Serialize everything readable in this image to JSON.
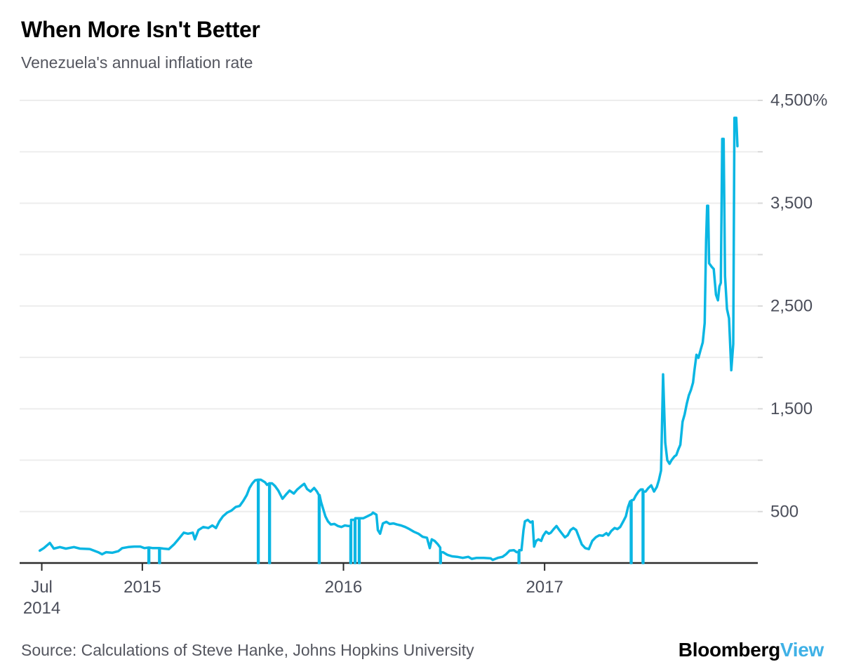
{
  "header": {
    "title": "When More Isn't Better",
    "subtitle": "Venezuela's annual inflation rate"
  },
  "footer": {
    "source": "Source: Calculations of Steve Hanke, Johns Hopkins University",
    "brand_bloomberg": "Bloomberg",
    "brand_view": "View"
  },
  "chart_data": {
    "type": "line",
    "title": "When More Isn't Better",
    "subtitle": "Venezuela's annual inflation rate",
    "series_name": "Venezuela annual inflation rate (%)",
    "line_color": "#0ab6e3",
    "grid_color": "#ededed",
    "tick_color": "#d9d9d9",
    "axis_color": "#2d2d2d",
    "label_color": "#4b4e5a",
    "view_blue": "#3fb1e6",
    "ylim": [
      0,
      4500
    ],
    "grid_step": 500,
    "x_range_years": [
      2014.39,
      2018.06
    ],
    "legend": "none",
    "y_ticks": [
      {
        "value": 4500,
        "label": "4,500%"
      },
      {
        "value": 3500,
        "label": "3,500"
      },
      {
        "value": 2500,
        "label": "2,500"
      },
      {
        "value": 1500,
        "label": "1,500"
      },
      {
        "value": 500,
        "label": "500"
      }
    ],
    "x_ticks": [
      {
        "year": 2014.5,
        "label": "Jul",
        "sublabel": "2014"
      },
      {
        "year": 2015,
        "label": "2015"
      },
      {
        "year": 2016,
        "label": "2016"
      },
      {
        "year": 2017,
        "label": "2017"
      }
    ],
    "points": [
      [
        2014.49,
        120
      ],
      [
        2014.51,
        145
      ],
      [
        2014.54,
        195
      ],
      [
        2014.56,
        140
      ],
      [
        2014.59,
        155
      ],
      [
        2014.62,
        140
      ],
      [
        2014.66,
        155
      ],
      [
        2014.69,
        140
      ],
      [
        2014.74,
        135
      ],
      [
        2014.78,
        105
      ],
      [
        2014.8,
        85
      ],
      [
        2014.82,
        105
      ],
      [
        2014.85,
        100
      ],
      [
        2014.88,
        115
      ],
      [
        2014.9,
        145
      ],
      [
        2014.93,
        155
      ],
      [
        2014.96,
        160
      ],
      [
        2014.99,
        160
      ],
      [
        2015.01,
        145
      ],
      [
        2015.031,
        150
      ],
      [
        2015.031,
        0
      ],
      [
        2015.034,
        0
      ],
      [
        2015.034,
        150
      ],
      [
        2015.052,
        145
      ],
      [
        2015.084,
        145
      ],
      [
        2015.084,
        0
      ],
      [
        2015.087,
        0
      ],
      [
        2015.087,
        145
      ],
      [
        2015.105,
        140
      ],
      [
        2015.132,
        135
      ],
      [
        2015.157,
        180
      ],
      [
        2015.181,
        235
      ],
      [
        2015.206,
        295
      ],
      [
        2015.227,
        285
      ],
      [
        2015.251,
        295
      ],
      [
        2015.261,
        230
      ],
      [
        2015.279,
        320
      ],
      [
        2015.303,
        350
      ],
      [
        2015.328,
        340
      ],
      [
        2015.348,
        365
      ],
      [
        2015.366,
        340
      ],
      [
        2015.383,
        405
      ],
      [
        2015.401,
        455
      ],
      [
        2015.422,
        490
      ],
      [
        2015.443,
        510
      ],
      [
        2015.464,
        545
      ],
      [
        2015.484,
        555
      ],
      [
        2015.502,
        605
      ],
      [
        2015.519,
        660
      ],
      [
        2015.533,
        730
      ],
      [
        2015.547,
        775
      ],
      [
        2015.561,
        805
      ],
      [
        2015.575,
        810
      ],
      [
        2015.575,
        0
      ],
      [
        2015.578,
        0
      ],
      [
        2015.578,
        810
      ],
      [
        2015.589,
        810
      ],
      [
        2015.61,
        785
      ],
      [
        2015.62,
        760
      ],
      [
        2015.631,
        775
      ],
      [
        2015.631,
        0
      ],
      [
        2015.634,
        0
      ],
      [
        2015.634,
        775
      ],
      [
        2015.645,
        775
      ],
      [
        2015.659,
        750
      ],
      [
        2015.676,
        705
      ],
      [
        2015.697,
        625
      ],
      [
        2015.714,
        665
      ],
      [
        2015.732,
        705
      ],
      [
        2015.753,
        675
      ],
      [
        2015.77,
        715
      ],
      [
        2015.791,
        750
      ],
      [
        2015.805,
        770
      ],
      [
        2015.819,
        720
      ],
      [
        2015.836,
        695
      ],
      [
        2015.854,
        730
      ],
      [
        2015.868,
        695
      ],
      [
        2015.878,
        660
      ],
      [
        2015.878,
        0
      ],
      [
        2015.881,
        0
      ],
      [
        2015.881,
        660
      ],
      [
        2015.889,
        590
      ],
      [
        2015.899,
        525
      ],
      [
        2015.91,
        455
      ],
      [
        2015.923,
        405
      ],
      [
        2015.937,
        375
      ],
      [
        2015.955,
        380
      ],
      [
        2015.972,
        360
      ],
      [
        2015.99,
        350
      ],
      [
        2016.007,
        365
      ],
      [
        2016.024,
        360
      ],
      [
        2016.035,
        360
      ],
      [
        2016.035,
        0
      ],
      [
        2016.038,
        0
      ],
      [
        2016.038,
        420
      ],
      [
        2016.056,
        420
      ],
      [
        2016.056,
        0
      ],
      [
        2016.059,
        0
      ],
      [
        2016.059,
        435
      ],
      [
        2016.077,
        435
      ],
      [
        2016.077,
        0
      ],
      [
        2016.08,
        0
      ],
      [
        2016.08,
        435
      ],
      [
        2016.098,
        435
      ],
      [
        2016.119,
        455
      ],
      [
        2016.14,
        475
      ],
      [
        2016.147,
        490
      ],
      [
        2016.164,
        470
      ],
      [
        2016.171,
        320
      ],
      [
        2016.182,
        285
      ],
      [
        2016.196,
        385
      ],
      [
        2016.213,
        400
      ],
      [
        2016.23,
        380
      ],
      [
        2016.248,
        385
      ],
      [
        2016.265,
        375
      ],
      [
        2016.286,
        365
      ],
      [
        2016.307,
        350
      ],
      [
        2016.328,
        330
      ],
      [
        2016.349,
        305
      ],
      [
        2016.373,
        285
      ],
      [
        2016.394,
        255
      ],
      [
        2016.415,
        245
      ],
      [
        2016.429,
        145
      ],
      [
        2016.439,
        230
      ],
      [
        2016.453,
        215
      ],
      [
        2016.47,
        180
      ],
      [
        2016.481,
        150
      ],
      [
        2016.481,
        0
      ],
      [
        2016.484,
        0
      ],
      [
        2016.484,
        105
      ],
      [
        2016.495,
        105
      ],
      [
        2016.516,
        80
      ],
      [
        2016.54,
        65
      ],
      [
        2016.565,
        60
      ],
      [
        2016.593,
        50
      ],
      [
        2016.621,
        60
      ],
      [
        2016.638,
        40
      ],
      [
        2016.662,
        50
      ],
      [
        2016.697,
        50
      ],
      [
        2016.732,
        45
      ],
      [
        2016.742,
        30
      ],
      [
        2016.767,
        50
      ],
      [
        2016.791,
        60
      ],
      [
        2016.808,
        85
      ],
      [
        2016.826,
        120
      ],
      [
        2016.847,
        125
      ],
      [
        2016.861,
        105
      ],
      [
        2016.871,
        110
      ],
      [
        2016.871,
        0
      ],
      [
        2016.874,
        0
      ],
      [
        2016.874,
        125
      ],
      [
        2016.885,
        125
      ],
      [
        2016.895,
        320
      ],
      [
        2016.902,
        405
      ],
      [
        2016.916,
        420
      ],
      [
        2016.93,
        395
      ],
      [
        2016.94,
        405
      ],
      [
        2016.948,
        160
      ],
      [
        2016.958,
        215
      ],
      [
        2016.969,
        230
      ],
      [
        2016.983,
        215
      ],
      [
        2016.993,
        265
      ],
      [
        2017.007,
        305
      ],
      [
        2017.021,
        285
      ],
      [
        2017.031,
        295
      ],
      [
        2017.045,
        330
      ],
      [
        2017.059,
        360
      ],
      [
        2017.073,
        320
      ],
      [
        2017.087,
        285
      ],
      [
        2017.101,
        250
      ],
      [
        2017.115,
        270
      ],
      [
        2017.129,
        320
      ],
      [
        2017.143,
        340
      ],
      [
        2017.157,
        320
      ],
      [
        2017.171,
        250
      ],
      [
        2017.185,
        180
      ],
      [
        2017.202,
        145
      ],
      [
        2017.22,
        135
      ],
      [
        2017.237,
        215
      ],
      [
        2017.254,
        250
      ],
      [
        2017.272,
        270
      ],
      [
        2017.289,
        265
      ],
      [
        2017.307,
        290
      ],
      [
        2017.317,
        270
      ],
      [
        2017.331,
        310
      ],
      [
        2017.348,
        340
      ],
      [
        2017.362,
        330
      ],
      [
        2017.376,
        350
      ],
      [
        2017.39,
        400
      ],
      [
        2017.404,
        455
      ],
      [
        2017.415,
        545
      ],
      [
        2017.425,
        600
      ],
      [
        2017.429,
        600
      ],
      [
        2017.429,
        0
      ],
      [
        2017.432,
        0
      ],
      [
        2017.432,
        610
      ],
      [
        2017.443,
        615
      ],
      [
        2017.453,
        655
      ],
      [
        2017.467,
        695
      ],
      [
        2017.478,
        715
      ],
      [
        2017.488,
        715
      ],
      [
        2017.488,
        0
      ],
      [
        2017.491,
        0
      ],
      [
        2017.491,
        695
      ],
      [
        2017.502,
        695
      ],
      [
        2017.516,
        730
      ],
      [
        2017.53,
        755
      ],
      [
        2017.544,
        695
      ],
      [
        2017.558,
        740
      ],
      [
        2017.568,
        805
      ],
      [
        2017.579,
        900
      ],
      [
        2017.589,
        1835
      ],
      [
        2017.6,
        1170
      ],
      [
        2017.61,
        1000
      ],
      [
        2017.621,
        965
      ],
      [
        2017.631,
        1000
      ],
      [
        2017.645,
        1035
      ],
      [
        2017.655,
        1050
      ],
      [
        2017.665,
        1105
      ],
      [
        2017.675,
        1150
      ],
      [
        2017.686,
        1375
      ],
      [
        2017.696,
        1445
      ],
      [
        2017.707,
        1550
      ],
      [
        2017.717,
        1630
      ],
      [
        2017.728,
        1685
      ],
      [
        2017.738,
        1755
      ],
      [
        2017.745,
        1875
      ],
      [
        2017.755,
        2025
      ],
      [
        2017.765,
        1995
      ],
      [
        2017.776,
        2075
      ],
      [
        2017.786,
        2145
      ],
      [
        2017.796,
        2335
      ],
      [
        2017.803,
        3135
      ],
      [
        2017.808,
        3475
      ],
      [
        2017.813,
        3475
      ],
      [
        2017.818,
        2915
      ],
      [
        2017.831,
        2880
      ],
      [
        2017.841,
        2860
      ],
      [
        2017.852,
        2610
      ],
      [
        2017.862,
        2555
      ],
      [
        2017.869,
        2690
      ],
      [
        2017.876,
        2725
      ],
      [
        2017.883,
        4125
      ],
      [
        2017.89,
        4125
      ],
      [
        2017.897,
        2790
      ],
      [
        2017.907,
        2470
      ],
      [
        2017.917,
        2380
      ],
      [
        2017.928,
        1875
      ],
      [
        2017.938,
        2130
      ],
      [
        2017.944,
        4330
      ],
      [
        2017.953,
        4330
      ],
      [
        2017.959,
        4055
      ]
    ]
  }
}
